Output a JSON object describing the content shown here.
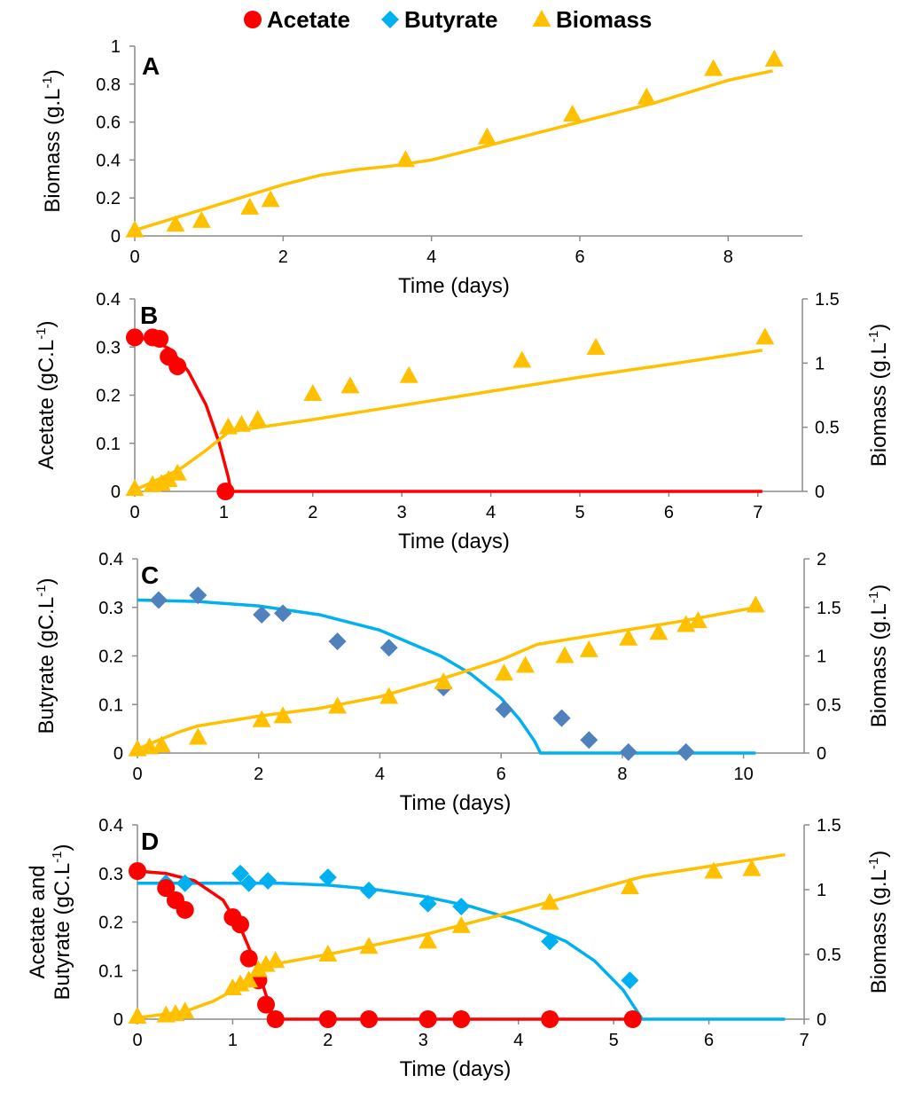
{
  "colors": {
    "acetate": "#ff0000",
    "butyrate": "#00b0f0",
    "biomass": "#ffc000",
    "butyrate_marker": "#4f81bd"
  },
  "legend": [
    {
      "label": "Acetate",
      "marker": "circle",
      "color": "#ff0000"
    },
    {
      "label": "Butyrate",
      "marker": "diamond",
      "color": "#00b0f0"
    },
    {
      "label": "Biomass",
      "marker": "triangle",
      "color": "#ffc000"
    }
  ],
  "chart_data": [
    {
      "panel": "A",
      "type": "scatter",
      "xlabel": "Time (days)",
      "xlim": [
        0,
        9
      ],
      "xticks": [
        0,
        2,
        4,
        6,
        8
      ],
      "y_left": {
        "label": "Biomass (g.L",
        "sup": "-1",
        "label_end": ")",
        "lim": [
          0,
          1
        ],
        "ticks": [
          0,
          0.2,
          0.4,
          0.6,
          0.8,
          1
        ],
        "tick_labels": [
          "0",
          "0.2",
          "0.4",
          "0.6",
          "0.8",
          "1"
        ]
      },
      "series": [
        {
          "name": "Biomass",
          "kind": "points",
          "axis": "left",
          "marker": "triangle",
          "color": "#ffc000",
          "x": [
            0,
            0.55,
            0.9,
            1.55,
            1.83,
            3.65,
            4.75,
            5.9,
            6.9,
            7.8,
            8.62
          ],
          "y": [
            0.03,
            0.06,
            0.08,
            0.15,
            0.19,
            0.4,
            0.52,
            0.64,
            0.73,
            0.88,
            0.93
          ]
        },
        {
          "kind": "line",
          "axis": "left",
          "color": "#ffc000",
          "x": [
            0,
            0.5,
            1,
            1.5,
            2,
            2.5,
            3,
            3.5,
            4,
            4.5,
            5,
            5.5,
            6,
            6.5,
            7,
            7.5,
            8,
            8.6
          ],
          "y": [
            0.03,
            0.09,
            0.15,
            0.21,
            0.27,
            0.32,
            0.35,
            0.37,
            0.4,
            0.45,
            0.5,
            0.55,
            0.6,
            0.65,
            0.7,
            0.76,
            0.82,
            0.87
          ]
        }
      ]
    },
    {
      "panel": "B",
      "type": "scatter",
      "xlabel": "Time (days)",
      "xlim": [
        0,
        7.5
      ],
      "xticks": [
        0,
        1,
        2,
        3,
        4,
        5,
        6,
        7
      ],
      "y_left": {
        "label": "Acetate (gC.L",
        "sup": "-1",
        "label_end": ")",
        "lim": [
          0,
          0.4
        ],
        "ticks": [
          0,
          0.1,
          0.2,
          0.3,
          0.4
        ],
        "tick_labels": [
          "0",
          "0.1",
          "0.2",
          "0.3",
          "0.4"
        ]
      },
      "y_right": {
        "label": "Biomass (g.L",
        "sup": "-1",
        "label_end": ")",
        "lim": [
          0,
          1.5
        ],
        "ticks": [
          0,
          0.5,
          1,
          1.5
        ],
        "tick_labels": [
          "0",
          "0.5",
          "1",
          "1.5"
        ]
      },
      "series": [
        {
          "kind": "line",
          "axis": "left",
          "color": "#ff0000",
          "x": [
            0,
            0.2,
            0.4,
            0.6,
            0.8,
            0.95,
            1.05,
            1.08,
            7.05
          ],
          "y": [
            0.32,
            0.315,
            0.295,
            0.25,
            0.18,
            0.1,
            0.03,
            0,
            0
          ]
        },
        {
          "kind": "line",
          "axis": "right",
          "color": "#ffc000",
          "x": [
            0,
            0.5,
            0.8,
            1.05,
            1.2,
            2,
            3,
            4,
            5,
            6,
            7.05
          ],
          "y": [
            0.01,
            0.17,
            0.32,
            0.46,
            0.48,
            0.56,
            0.67,
            0.78,
            0.89,
            0.99,
            1.1
          ]
        },
        {
          "name": "Acetate",
          "kind": "points",
          "axis": "left",
          "marker": "circle",
          "color": "#ff0000",
          "x": [
            0,
            0.2,
            0.28,
            0.38,
            0.48,
            1.02
          ],
          "y": [
            0.32,
            0.32,
            0.317,
            0.28,
            0.26,
            0
          ]
        },
        {
          "name": "Biomass",
          "kind": "points",
          "axis": "right",
          "marker": "triangle",
          "color": "#ffc000",
          "x": [
            0,
            0.2,
            0.3,
            0.38,
            0.48,
            1.05,
            1.2,
            1.38,
            2,
            2.42,
            3.08,
            4.35,
            5.18,
            7.08
          ],
          "y": [
            0.02,
            0.05,
            0.06,
            0.09,
            0.14,
            0.5,
            0.52,
            0.56,
            0.76,
            0.82,
            0.9,
            1.02,
            1.12,
            1.2
          ]
        }
      ]
    },
    {
      "panel": "C",
      "type": "scatter",
      "xlabel": "Time (days)",
      "xlim": [
        0,
        11
      ],
      "xticks": [
        0,
        2,
        4,
        6,
        8,
        10
      ],
      "y_left": {
        "label": "Butyrate  (gC.L",
        "sup": "-1",
        "label_end": ")",
        "lim": [
          0,
          0.4
        ],
        "ticks": [
          0,
          0.1,
          0.2,
          0.3,
          0.4
        ],
        "tick_labels": [
          "0",
          "0.1",
          "0.2",
          "0.3",
          "0.4"
        ]
      },
      "y_right": {
        "label": "Biomass (g.L",
        "sup": "-1",
        "label_end": ")",
        "lim": [
          0,
          2
        ],
        "ticks": [
          0,
          0.5,
          1,
          1.5,
          2
        ],
        "tick_labels": [
          "0",
          "0.5",
          "1",
          "1.5",
          "2"
        ]
      },
      "series": [
        {
          "kind": "line",
          "axis": "left",
          "color": "#00b0f0",
          "x": [
            0,
            1,
            2,
            3,
            4,
            5,
            5.5,
            6,
            6.3,
            6.55,
            6.65,
            10.2
          ],
          "y": [
            0.315,
            0.312,
            0.303,
            0.285,
            0.253,
            0.2,
            0.163,
            0.113,
            0.07,
            0.025,
            0,
            0
          ]
        },
        {
          "kind": "line",
          "axis": "right",
          "color": "#ffc000",
          "x": [
            0,
            0.3,
            0.7,
            1,
            2,
            3,
            4,
            5,
            6,
            6.6,
            7,
            8,
            9,
            10.2
          ],
          "y": [
            0.04,
            0.12,
            0.22,
            0.28,
            0.38,
            0.46,
            0.58,
            0.76,
            0.96,
            1.12,
            1.16,
            1.26,
            1.36,
            1.5
          ]
        },
        {
          "name": "Butyrate",
          "kind": "points",
          "axis": "left",
          "marker": "diamond",
          "color": "#4f81bd",
          "x": [
            0.35,
            1,
            2.05,
            2.4,
            3.3,
            4.15,
            5.05,
            6.05,
            7,
            7.45,
            8.1,
            9.05
          ],
          "y": [
            0.315,
            0.325,
            0.285,
            0.288,
            0.23,
            0.217,
            0.135,
            0.09,
            0.072,
            0.027,
            0.002,
            0.002
          ]
        },
        {
          "name": "Biomass",
          "kind": "points",
          "axis": "right",
          "marker": "triangle",
          "color": "#ffc000",
          "x": [
            0,
            0.2,
            0.4,
            1,
            2.05,
            2.4,
            3.3,
            4.15,
            5.05,
            6.05,
            6.4,
            7.05,
            7.45,
            8.1,
            8.6,
            9.05,
            9.25,
            10.2
          ],
          "y": [
            0.04,
            0.06,
            0.08,
            0.16,
            0.34,
            0.38,
            0.48,
            0.58,
            0.73,
            0.82,
            0.9,
            1,
            1.06,
            1.18,
            1.24,
            1.32,
            1.36,
            1.52
          ]
        }
      ]
    },
    {
      "panel": "D",
      "type": "scatter",
      "xlabel": "Time (days)",
      "xlim": [
        0,
        7
      ],
      "xticks": [
        0,
        1,
        2,
        3,
        4,
        5,
        6,
        7
      ],
      "y_left": {
        "label_line1": "Acetate and",
        "label": "Butyrate  (gC.L",
        "sup": "-1",
        "label_end": ")",
        "lim": [
          0,
          0.4
        ],
        "ticks": [
          0,
          0.1,
          0.2,
          0.3,
          0.4
        ],
        "tick_labels": [
          "0",
          "0.1",
          "0.2",
          "0.3",
          "0.4"
        ]
      },
      "y_right": {
        "label": "Biomass (g.L",
        "sup": "-1",
        "label_end": ")",
        "lim": [
          0,
          1.5
        ],
        "ticks": [
          0,
          0.5,
          1,
          1.5
        ],
        "tick_labels": [
          "0",
          "0.5",
          "1",
          "1.5"
        ]
      },
      "series": [
        {
          "kind": "line",
          "axis": "left",
          "color": "#00b0f0",
          "x": [
            0,
            1,
            1.5,
            2,
            2.5,
            3,
            3.5,
            4,
            4.5,
            4.8,
            5.1,
            5.3,
            6.8
          ],
          "y": [
            0.28,
            0.28,
            0.28,
            0.276,
            0.267,
            0.253,
            0.232,
            0.202,
            0.16,
            0.12,
            0.06,
            0,
            0
          ]
        },
        {
          "kind": "line",
          "axis": "right",
          "color": "#ffc000",
          "x": [
            0,
            0.5,
            0.8,
            1,
            1.2,
            1.4,
            2,
            3,
            4,
            5,
            5.3,
            6,
            6.8
          ],
          "y": [
            0.01,
            0.06,
            0.14,
            0.22,
            0.3,
            0.42,
            0.5,
            0.65,
            0.84,
            1.04,
            1.1,
            1.18,
            1.27
          ]
        },
        {
          "kind": "line",
          "axis": "left",
          "color": "#ff0000",
          "x": [
            0,
            0.3,
            0.6,
            0.9,
            1.1,
            1.25,
            1.35,
            1.42,
            1.45,
            5.2
          ],
          "y": [
            0.305,
            0.3,
            0.285,
            0.245,
            0.18,
            0.11,
            0.05,
            0.01,
            0,
            0
          ]
        },
        {
          "name": "Butyrate",
          "kind": "points",
          "axis": "left",
          "marker": "diamond",
          "color": "#00b0f0",
          "x": [
            0.3,
            0.5,
            1.08,
            1.17,
            1.37,
            2,
            2.43,
            3.05,
            3.4,
            4.33,
            5.17
          ],
          "y": [
            0.28,
            0.28,
            0.3,
            0.28,
            0.285,
            0.292,
            0.265,
            0.238,
            0.232,
            0.16,
            0.08
          ]
        },
        {
          "name": "Acetate",
          "kind": "points",
          "axis": "left",
          "marker": "circle",
          "color": "#ff0000",
          "x": [
            0,
            0.3,
            0.4,
            0.5,
            1,
            1.08,
            1.17,
            1.27,
            1.35,
            1.45,
            2,
            2.43,
            3.05,
            3.4,
            4.33,
            5.2
          ],
          "y": [
            0.305,
            0.27,
            0.245,
            0.225,
            0.21,
            0.195,
            0.125,
            0.08,
            0.03,
            0,
            0,
            0,
            0,
            0,
            0,
            0
          ]
        },
        {
          "name": "Biomass",
          "kind": "points",
          "axis": "right",
          "marker": "triangle",
          "color": "#ffc000",
          "x": [
            0,
            0.3,
            0.4,
            0.5,
            1,
            1.08,
            1.17,
            1.27,
            1.35,
            1.45,
            2,
            2.43,
            3.05,
            3.4,
            4.33,
            5.17,
            6.05,
            6.45
          ],
          "y": [
            0.02,
            0.03,
            0.04,
            0.06,
            0.24,
            0.27,
            0.3,
            0.38,
            0.42,
            0.45,
            0.5,
            0.56,
            0.6,
            0.72,
            0.9,
            1.02,
            1.14,
            1.16
          ]
        }
      ]
    }
  ]
}
